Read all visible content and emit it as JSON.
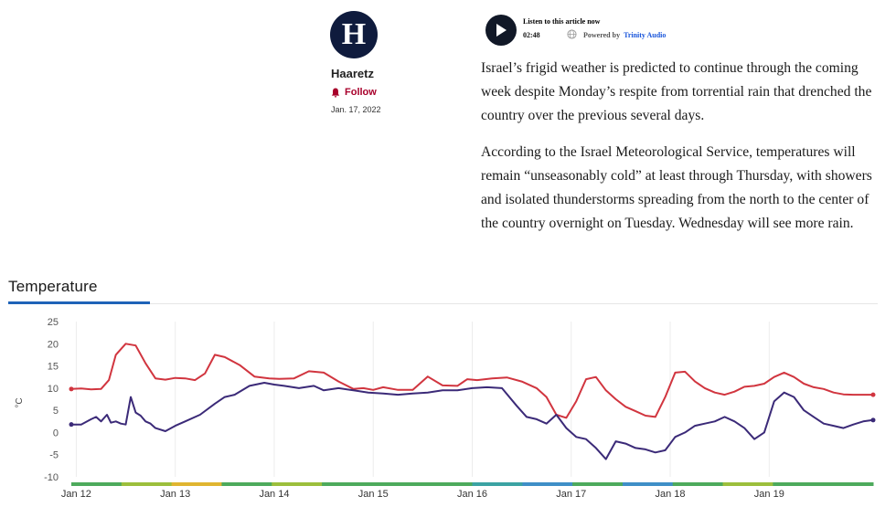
{
  "author": {
    "logo_letter": "H",
    "name": "Haaretz",
    "follow_label": "Follow",
    "date": "Jan. 17, 2022"
  },
  "audio": {
    "title": "Listen to this article now",
    "duration": "02:48",
    "powered_by": "Powered by",
    "provider": "Trinity Audio"
  },
  "article": {
    "paragraphs": [
      "Israel’s frigid weather is predicted to continue through the coming week despite Monday’s respite from torrential rain that drenched the country over the previous several days.",
      "According to the Israel Meteorological Service, temperatures will remain “unseasonably cold” at least through Thursday, with showers and isolated thunderstorms spreading from the north to the center of the country overnight on Tuesday. Wednesday will see more rain."
    ]
  },
  "colors": {
    "brand": "#0f1b3d",
    "follow": "#a8002b",
    "accent_blue": "#1e63b8",
    "max_series": "#d1353f",
    "min_series": "#3b2a78"
  },
  "chart_data": {
    "type": "line",
    "title": "Temperature",
    "ylabel": "°C",
    "ylim": [
      -10,
      25
    ],
    "yticks": [
      25,
      20,
      15,
      10,
      5,
      0,
      -5,
      -10
    ],
    "xlabels": [
      "Jan 12",
      "Jan 13",
      "Jan 14",
      "Jan 15",
      "Jan 16",
      "Jan 17",
      "Jan 18",
      "Jan 19"
    ],
    "xlim": [
      0,
      8.1
    ],
    "grid": "vertical",
    "series": [
      {
        "color": "#d1353f",
        "x": [
          0,
          0.1,
          0.2,
          0.3,
          0.38,
          0.45,
          0.55,
          0.65,
          0.75,
          0.85,
          0.95,
          1.05,
          1.15,
          1.25,
          1.35,
          1.45,
          1.55,
          1.7,
          1.85,
          2.0,
          2.1,
          2.25,
          2.4,
          2.55,
          2.7,
          2.85,
          2.95,
          3.05,
          3.15,
          3.3,
          3.45,
          3.6,
          3.75,
          3.9,
          4.0,
          4.1,
          4.25,
          4.4,
          4.55,
          4.7,
          4.8,
          4.9,
          5.0,
          5.1,
          5.2,
          5.3,
          5.4,
          5.5,
          5.6,
          5.7,
          5.8,
          5.9,
          6.0,
          6.1,
          6.2,
          6.3,
          6.4,
          6.5,
          6.6,
          6.7,
          6.8,
          6.9,
          7.0,
          7.1,
          7.2,
          7.3,
          7.4,
          7.5,
          7.6,
          7.7,
          7.8,
          7.9,
          8.0,
          8.1
        ],
        "values": [
          9.8,
          9.9,
          9.7,
          9.8,
          11.8,
          17.5,
          20.0,
          19.6,
          15.6,
          12.2,
          11.9,
          12.3,
          12.2,
          11.8,
          13.3,
          17.5,
          17.0,
          15.2,
          12.6,
          12.2,
          12.1,
          12.2,
          13.8,
          13.5,
          11.5,
          9.8,
          10.0,
          9.6,
          10.2,
          9.6,
          9.6,
          12.6,
          10.6,
          10.5,
          12.0,
          11.8,
          12.2,
          12.4,
          11.5,
          10.0,
          8.0,
          4.0,
          3.3,
          7.0,
          12.0,
          12.5,
          9.5,
          7.5,
          5.8,
          4.8,
          3.8,
          3.5,
          8.0,
          13.5,
          13.7,
          11.5,
          10.0,
          9.0,
          8.5,
          9.2,
          10.3,
          10.5,
          11.0,
          12.5,
          13.5,
          12.5,
          11.0,
          10.2,
          9.8,
          9.0,
          8.6,
          8.5,
          8.5,
          8.5
        ]
      },
      {
        "color": "#3b2a78",
        "x": [
          0,
          0.1,
          0.2,
          0.25,
          0.3,
          0.36,
          0.4,
          0.45,
          0.5,
          0.55,
          0.6,
          0.65,
          0.7,
          0.75,
          0.8,
          0.85,
          0.95,
          1.05,
          1.15,
          1.3,
          1.45,
          1.55,
          1.65,
          1.8,
          1.95,
          2.05,
          2.15,
          2.3,
          2.45,
          2.55,
          2.7,
          2.85,
          3.0,
          3.15,
          3.3,
          3.45,
          3.6,
          3.75,
          3.9,
          4.05,
          4.2,
          4.35,
          4.5,
          4.6,
          4.7,
          4.8,
          4.9,
          5.0,
          5.1,
          5.2,
          5.3,
          5.4,
          5.5,
          5.6,
          5.7,
          5.8,
          5.9,
          6.0,
          6.1,
          6.2,
          6.3,
          6.4,
          6.5,
          6.6,
          6.7,
          6.8,
          6.9,
          7.0,
          7.1,
          7.2,
          7.3,
          7.4,
          7.5,
          7.6,
          7.7,
          7.8,
          7.9,
          8.0,
          8.1
        ],
        "values": [
          1.8,
          1.8,
          3.0,
          3.5,
          2.5,
          4.0,
          2.2,
          2.5,
          2.0,
          1.8,
          8.0,
          4.5,
          3.8,
          2.5,
          2.0,
          1.0,
          0.3,
          1.5,
          2.5,
          4.0,
          6.5,
          8.0,
          8.5,
          10.5,
          11.2,
          10.8,
          10.5,
          10.0,
          10.5,
          9.5,
          10.0,
          9.5,
          9.0,
          8.8,
          8.5,
          8.8,
          9.0,
          9.5,
          9.5,
          10.0,
          10.2,
          10.0,
          6.0,
          3.5,
          3.0,
          2.0,
          4.0,
          1.0,
          -1.0,
          -1.5,
          -3.5,
          -6.0,
          -2.0,
          -2.5,
          -3.5,
          -3.8,
          -4.5,
          -4.0,
          -1.0,
          0.0,
          1.5,
          2.0,
          2.5,
          3.5,
          2.5,
          1.0,
          -1.5,
          0.0,
          7.0,
          9.0,
          8.0,
          5.0,
          3.5,
          2.0,
          1.5,
          1.0,
          1.8,
          2.5,
          2.8
        ]
      }
    ]
  }
}
